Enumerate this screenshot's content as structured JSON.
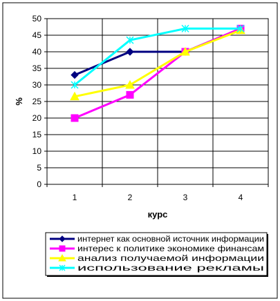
{
  "chart_data": {
    "type": "line",
    "categories": [
      "1",
      "2",
      "3",
      "4"
    ],
    "xlabel": "курс",
    "ylabel": "%",
    "ylim": [
      0,
      50
    ],
    "yticks": [
      0,
      5,
      10,
      15,
      20,
      25,
      30,
      35,
      40,
      45,
      50
    ],
    "grid": true,
    "legend_position": "bottom",
    "series": [
      {
        "name": "интернет как основной источник информации",
        "values": [
          33,
          40,
          40,
          47
        ],
        "color": "#000080",
        "marker": "diamond"
      },
      {
        "name": "интерес к политике экономике финансам",
        "values": [
          20,
          27,
          40,
          47
        ],
        "color": "#ff00ff",
        "marker": "square"
      },
      {
        "name": "анализ получаемой информации",
        "values": [
          26.5,
          30,
          40,
          46.5
        ],
        "color": "#ffff00",
        "marker": "triangle"
      },
      {
        "name": "использование рекламы",
        "values": [
          30,
          43.5,
          47,
          47
        ],
        "color": "#00ffff",
        "marker": "x"
      }
    ]
  }
}
